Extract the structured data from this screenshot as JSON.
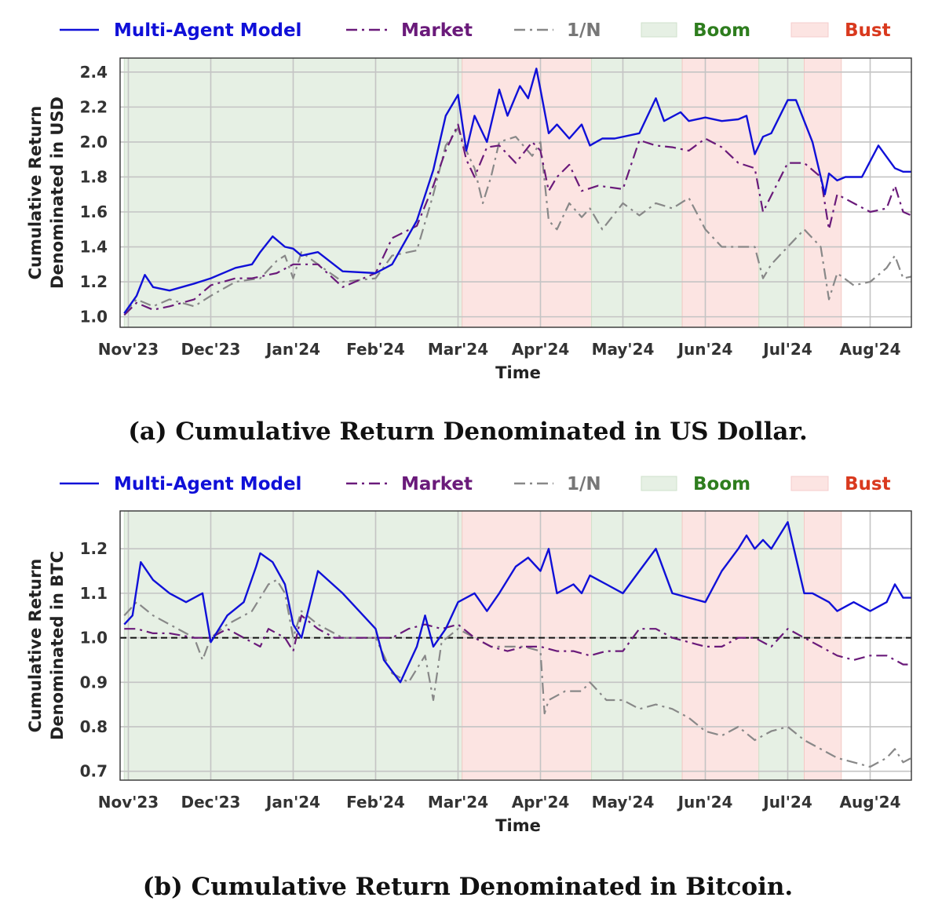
{
  "legend": {
    "items": [
      {
        "key": "model",
        "label": "Multi-Agent Model",
        "kind": "line",
        "color": "#1010d8",
        "text_color": "#1010d8"
      },
      {
        "key": "market",
        "label": "Market",
        "kind": "line",
        "color": "#6a1a7a",
        "text_color": "#6a1a7a"
      },
      {
        "key": "equal",
        "label": "1/N",
        "kind": "line",
        "color": "#888888",
        "text_color": "#777777"
      },
      {
        "key": "boom",
        "label": "Boom",
        "kind": "patch",
        "color": "#e6f0e4",
        "text_color": "#2e7d1e"
      },
      {
        "key": "bust",
        "label": "Bust",
        "kind": "patch",
        "color": "#fce4e2",
        "text_color": "#d9391e"
      }
    ]
  },
  "chart_data": [
    {
      "type": "line",
      "caption": "(a) Cumulative Return Denominated in US Dollar.",
      "xlabel": "Time",
      "ylabel": [
        "Cumulative Return",
        "Denominated in USD"
      ],
      "x_ticks": [
        "Nov'23",
        "Dec'23",
        "Jan'24",
        "Feb'24",
        "Mar'24",
        "Apr'24",
        "May'24",
        "Jun'24",
        "Jul'24",
        "Aug'24"
      ],
      "x_range": [
        -0.1,
        9.5
      ],
      "ylim": [
        0.94,
        2.48
      ],
      "y_ticks": [
        "1.0",
        "1.2",
        "1.4",
        "1.6",
        "1.8",
        "2.0",
        "2.2",
        "2.4"
      ],
      "reference_line": null,
      "regimes": [
        {
          "kind": "boom",
          "start": -0.05,
          "end": 4.05
        },
        {
          "kind": "bust",
          "start": 4.05,
          "end": 5.62
        },
        {
          "kind": "boom",
          "start": 5.62,
          "end": 6.72
        },
        {
          "kind": "bust",
          "start": 6.72,
          "end": 7.65
        },
        {
          "kind": "boom",
          "start": 7.65,
          "end": 8.2
        },
        {
          "kind": "bust",
          "start": 8.2,
          "end": 8.65
        }
      ],
      "series": [
        {
          "key": "model",
          "name": "Multi-Agent Model",
          "x": [
            -0.05,
            0.1,
            0.2,
            0.3,
            0.5,
            0.8,
            1.0,
            1.3,
            1.5,
            1.6,
            1.75,
            1.9,
            2.0,
            2.1,
            2.3,
            2.6,
            3.0,
            3.2,
            3.5,
            3.7,
            3.85,
            4.0,
            4.1,
            4.2,
            4.35,
            4.5,
            4.6,
            4.75,
            4.85,
            4.95,
            5.0,
            5.1,
            5.2,
            5.35,
            5.5,
            5.6,
            5.75,
            5.9,
            6.2,
            6.4,
            6.5,
            6.7,
            6.8,
            7.0,
            7.2,
            7.4,
            7.5,
            7.6,
            7.7,
            7.8,
            8.0,
            8.1,
            8.3,
            8.45,
            8.5,
            8.6,
            8.7,
            8.9,
            9.1,
            9.3,
            9.4,
            9.5
          ],
          "values": [
            1.02,
            1.12,
            1.24,
            1.17,
            1.15,
            1.19,
            1.22,
            1.28,
            1.3,
            1.37,
            1.46,
            1.4,
            1.39,
            1.35,
            1.37,
            1.26,
            1.25,
            1.3,
            1.55,
            1.84,
            2.15,
            2.27,
            1.95,
            2.15,
            2.0,
            2.3,
            2.15,
            2.32,
            2.25,
            2.42,
            2.3,
            2.05,
            2.1,
            2.02,
            2.1,
            1.98,
            2.02,
            2.02,
            2.05,
            2.25,
            2.12,
            2.17,
            2.12,
            2.14,
            2.12,
            2.13,
            2.15,
            1.93,
            2.03,
            2.05,
            2.24,
            2.24,
            2.0,
            1.7,
            1.82,
            1.78,
            1.8,
            1.8,
            1.98,
            1.85,
            1.83,
            1.83
          ]
        },
        {
          "key": "market",
          "name": "Market",
          "x": [
            -0.05,
            0.1,
            0.3,
            0.5,
            0.8,
            1.0,
            1.3,
            1.5,
            1.8,
            2.0,
            2.3,
            2.6,
            3.0,
            3.2,
            3.5,
            3.7,
            3.85,
            4.0,
            4.1,
            4.2,
            4.35,
            4.5,
            4.7,
            4.9,
            5.0,
            5.1,
            5.2,
            5.35,
            5.5,
            5.7,
            6.0,
            6.2,
            6.4,
            6.6,
            6.8,
            7.0,
            7.2,
            7.4,
            7.6,
            7.7,
            8.0,
            8.2,
            8.4,
            8.5,
            8.6,
            8.8,
            9.0,
            9.2,
            9.3,
            9.4,
            9.5
          ],
          "values": [
            1.01,
            1.08,
            1.04,
            1.06,
            1.1,
            1.18,
            1.22,
            1.22,
            1.25,
            1.3,
            1.3,
            1.17,
            1.25,
            1.45,
            1.52,
            1.75,
            1.95,
            2.1,
            1.9,
            1.8,
            1.97,
            1.98,
            1.88,
            2.0,
            1.95,
            1.72,
            1.8,
            1.87,
            1.72,
            1.75,
            1.73,
            2.01,
            1.98,
            1.97,
            1.95,
            2.02,
            1.97,
            1.88,
            1.85,
            1.6,
            1.88,
            1.88,
            1.8,
            1.5,
            1.7,
            1.65,
            1.6,
            1.62,
            1.75,
            1.6,
            1.58
          ]
        },
        {
          "key": "equal",
          "name": "1/N",
          "x": [
            -0.05,
            0.1,
            0.3,
            0.5,
            0.8,
            1.0,
            1.3,
            1.6,
            1.8,
            1.9,
            2.0,
            2.1,
            2.3,
            2.6,
            3.0,
            3.2,
            3.5,
            3.7,
            3.85,
            4.0,
            4.1,
            4.2,
            4.3,
            4.4,
            4.5,
            4.7,
            4.9,
            5.0,
            5.1,
            5.2,
            5.35,
            5.5,
            5.6,
            5.75,
            6.0,
            6.2,
            6.4,
            6.6,
            6.8,
            7.0,
            7.2,
            7.4,
            7.6,
            7.7,
            7.8,
            8.0,
            8.2,
            8.4,
            8.5,
            8.6,
            8.8,
            9.0,
            9.2,
            9.3,
            9.4,
            9.5
          ],
          "values": [
            1.02,
            1.1,
            1.06,
            1.1,
            1.06,
            1.12,
            1.2,
            1.22,
            1.32,
            1.35,
            1.22,
            1.37,
            1.3,
            1.2,
            1.22,
            1.35,
            1.38,
            1.7,
            1.98,
            2.08,
            1.95,
            1.85,
            1.65,
            1.8,
            2.0,
            2.03,
            1.92,
            2.0,
            1.55,
            1.5,
            1.65,
            1.57,
            1.62,
            1.5,
            1.65,
            1.58,
            1.65,
            1.62,
            1.68,
            1.5,
            1.4,
            1.4,
            1.4,
            1.22,
            1.3,
            1.4,
            1.5,
            1.4,
            1.1,
            1.25,
            1.18,
            1.2,
            1.28,
            1.35,
            1.22,
            1.23
          ]
        }
      ]
    },
    {
      "type": "line",
      "caption": "(b) Cumulative Return Denominated in Bitcoin.",
      "xlabel": "Time",
      "ylabel": [
        "Cumulative Return",
        "Denominated in BTC"
      ],
      "x_ticks": [
        "Nov'23",
        "Dec'23",
        "Jan'24",
        "Feb'24",
        "Mar'24",
        "Apr'24",
        "May'24",
        "Jun'24",
        "Jul'24",
        "Aug'24"
      ],
      "x_range": [
        -0.1,
        9.5
      ],
      "ylim": [
        0.68,
        1.285
      ],
      "y_ticks": [
        "0.7",
        "0.8",
        "0.9",
        "1.0",
        "1.1",
        "1.2"
      ],
      "reference_line": 1.0,
      "regimes": [
        {
          "kind": "boom",
          "start": -0.05,
          "end": 4.05
        },
        {
          "kind": "bust",
          "start": 4.05,
          "end": 5.62
        },
        {
          "kind": "boom",
          "start": 5.62,
          "end": 6.72
        },
        {
          "kind": "bust",
          "start": 6.72,
          "end": 7.65
        },
        {
          "kind": "boom",
          "start": 7.65,
          "end": 8.2
        },
        {
          "kind": "bust",
          "start": 8.2,
          "end": 8.65
        }
      ],
      "series": [
        {
          "key": "model",
          "name": "Multi-Agent Model",
          "x": [
            -0.05,
            0.05,
            0.15,
            0.3,
            0.5,
            0.7,
            0.9,
            1.0,
            1.1,
            1.2,
            1.4,
            1.55,
            1.6,
            1.75,
            1.9,
            2.0,
            2.1,
            2.3,
            2.6,
            3.0,
            3.1,
            3.3,
            3.5,
            3.6,
            3.7,
            3.85,
            4.0,
            4.2,
            4.35,
            4.5,
            4.7,
            4.85,
            5.0,
            5.1,
            5.2,
            5.4,
            5.5,
            5.6,
            5.8,
            6.0,
            6.2,
            6.4,
            6.6,
            6.8,
            7.0,
            7.2,
            7.4,
            7.5,
            7.6,
            7.7,
            7.8,
            8.0,
            8.2,
            8.3,
            8.5,
            8.6,
            8.8,
            9.0,
            9.2,
            9.3,
            9.4,
            9.5
          ],
          "values": [
            1.03,
            1.05,
            1.17,
            1.13,
            1.1,
            1.08,
            1.1,
            0.99,
            1.02,
            1.05,
            1.08,
            1.16,
            1.19,
            1.17,
            1.12,
            1.03,
            1.0,
            1.15,
            1.1,
            1.02,
            0.95,
            0.9,
            0.98,
            1.05,
            0.98,
            1.02,
            1.08,
            1.1,
            1.06,
            1.1,
            1.16,
            1.18,
            1.15,
            1.2,
            1.1,
            1.12,
            1.1,
            1.14,
            1.12,
            1.1,
            1.15,
            1.2,
            1.1,
            1.09,
            1.08,
            1.15,
            1.2,
            1.23,
            1.2,
            1.22,
            1.2,
            1.26,
            1.1,
            1.1,
            1.08,
            1.06,
            1.08,
            1.06,
            1.08,
            1.12,
            1.09,
            1.09
          ]
        },
        {
          "key": "market",
          "name": "Market",
          "x": [
            -0.05,
            0.1,
            0.3,
            0.5,
            0.8,
            1.0,
            1.2,
            1.4,
            1.6,
            1.7,
            1.9,
            2.0,
            2.1,
            2.3,
            2.5,
            2.7,
            3.0,
            3.2,
            3.4,
            3.6,
            3.8,
            4.0,
            4.2,
            4.4,
            4.6,
            4.8,
            5.0,
            5.2,
            5.4,
            5.6,
            5.8,
            6.0,
            6.2,
            6.4,
            6.6,
            6.8,
            7.0,
            7.2,
            7.4,
            7.6,
            7.8,
            8.0,
            8.2,
            8.4,
            8.6,
            8.8,
            9.0,
            9.2,
            9.3,
            9.4,
            9.5
          ],
          "values": [
            1.02,
            1.02,
            1.01,
            1.01,
            1.0,
            1.0,
            1.02,
            1.0,
            0.98,
            1.02,
            1.0,
            0.97,
            1.05,
            1.02,
            1.0,
            1.0,
            1.0,
            1.0,
            1.02,
            1.03,
            1.02,
            1.03,
            1.0,
            0.98,
            0.97,
            0.98,
            0.98,
            0.97,
            0.97,
            0.96,
            0.97,
            0.97,
            1.02,
            1.02,
            1.0,
            0.99,
            0.98,
            0.98,
            1.0,
            1.0,
            0.98,
            1.02,
            1.0,
            0.98,
            0.96,
            0.95,
            0.96,
            0.96,
            0.95,
            0.94,
            0.94
          ]
        },
        {
          "key": "equal",
          "name": "1/N",
          "x": [
            -0.05,
            0.1,
            0.3,
            0.5,
            0.8,
            0.9,
            1.0,
            1.2,
            1.5,
            1.7,
            1.8,
            1.9,
            2.0,
            2.1,
            2.3,
            2.6,
            3.0,
            3.2,
            3.4,
            3.6,
            3.7,
            3.8,
            4.0,
            4.2,
            4.4,
            4.6,
            4.8,
            5.0,
            5.05,
            5.1,
            5.3,
            5.5,
            5.6,
            5.8,
            6.0,
            6.2,
            6.4,
            6.6,
            6.8,
            7.0,
            7.2,
            7.4,
            7.6,
            7.8,
            8.0,
            8.2,
            8.4,
            8.6,
            8.8,
            9.0,
            9.2,
            9.3,
            9.4,
            9.5
          ],
          "values": [
            1.05,
            1.08,
            1.05,
            1.03,
            1.0,
            0.95,
            1.0,
            1.03,
            1.06,
            1.12,
            1.13,
            1.1,
            1.0,
            1.06,
            1.03,
            1.0,
            1.0,
            0.92,
            0.9,
            0.96,
            0.86,
            0.99,
            1.02,
            1.0,
            0.98,
            0.98,
            0.98,
            0.97,
            0.83,
            0.86,
            0.88,
            0.88,
            0.9,
            0.86,
            0.86,
            0.84,
            0.85,
            0.84,
            0.82,
            0.79,
            0.78,
            0.8,
            0.77,
            0.79,
            0.8,
            0.77,
            0.75,
            0.73,
            0.72,
            0.71,
            0.73,
            0.75,
            0.72,
            0.73
          ]
        }
      ]
    }
  ]
}
